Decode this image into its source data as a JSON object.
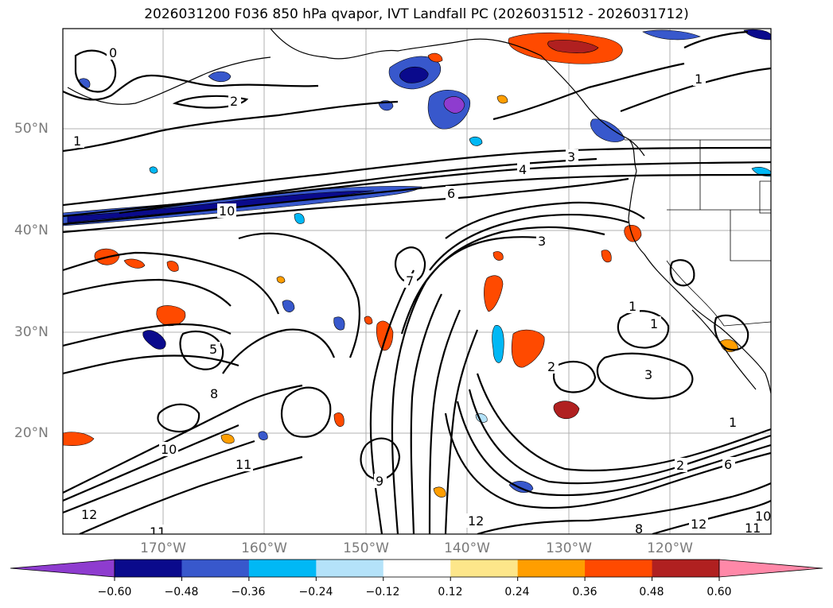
{
  "title": "2026031200 F036 850 hPa qvapor, IVT Landfall PC (2026031512 - 2026031712)",
  "lat_labels": [
    "50°N",
    "40°N",
    "30°N",
    "20°N"
  ],
  "lon_labels": [
    "170°W",
    "160°W",
    "150°W",
    "140°W",
    "130°W",
    "120°W"
  ],
  "contour_labels": [
    "0",
    "2",
    "1",
    "3",
    "4",
    "6",
    "10",
    "3",
    "1",
    "1",
    "3",
    "2",
    "5",
    "8",
    "10",
    "11",
    "9",
    "12",
    "8",
    "12",
    "11",
    "1",
    "2",
    "6",
    "12",
    "10",
    "11",
    "7",
    "1"
  ],
  "colorbar": {
    "ticks": [
      "−0.60",
      "−0.48",
      "−0.36",
      "−0.24",
      "−0.12",
      "0.12",
      "0.24",
      "0.36",
      "0.48",
      "0.60"
    ],
    "colors": [
      "#8e3ccf",
      "#0a0a8c",
      "#3858cc",
      "#00b8f5",
      "#b4e2f9",
      "#ffffff",
      "#fde68a",
      "#ff9e00",
      "#ff4a00",
      "#b02020",
      "#ff88a8"
    ],
    "under_color": "#8e3ccf",
    "over_color": "#ff88a8"
  }
}
